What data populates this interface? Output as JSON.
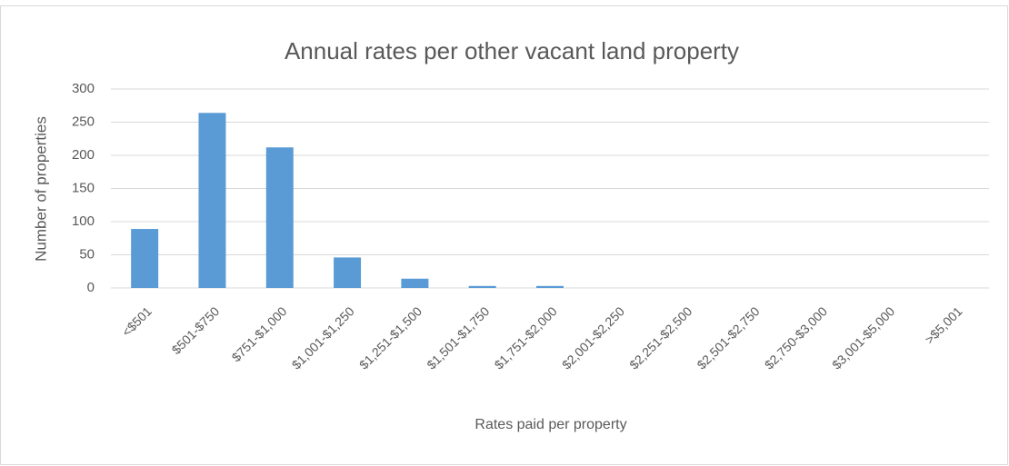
{
  "chart_data": {
    "type": "bar",
    "title": "Annual rates per other vacant land property",
    "x_label": "Rates paid per property",
    "y_label": "Number of properties",
    "categories": [
      "<$501",
      "$501-$750",
      "$751-$1,000",
      "$1,001-$1,250",
      "$1,251-$1,500",
      "$1,501-$1,750",
      "$1,751-$2,000",
      "$2,001-$2,250",
      "$2,251-$2,500",
      "$2,501-$2,750",
      "$2,750-$3,000",
      "$3,001-$5,000",
      ">$5,001"
    ],
    "values": [
      89,
      264,
      212,
      46,
      14,
      3,
      3,
      0,
      0,
      0,
      0,
      0,
      0
    ],
    "color": "#5b9bd5",
    "ylim": [
      0,
      300
    ],
    "yticks": [
      0,
      50,
      100,
      150,
      200,
      250,
      300
    ],
    "grid": true
  }
}
